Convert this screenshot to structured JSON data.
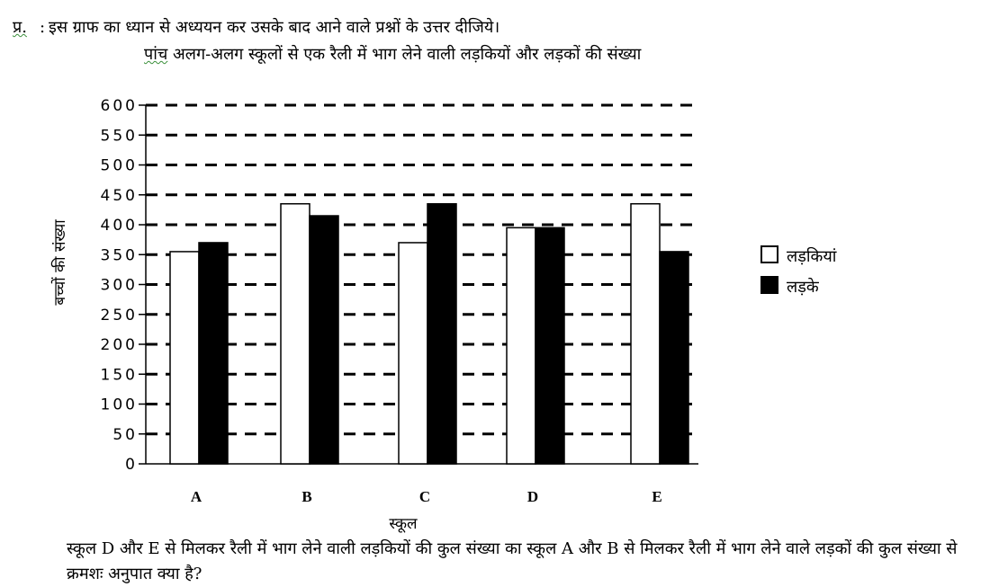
{
  "question_prefix": "प्र.",
  "question_sep": ":",
  "intro": "इस ग्राफ का ध्यान से अध्ययन कर उसके बाद आने वाले प्रश्नों के उत्तर दीजिये।",
  "question": "स्कूल D और E से मिलकर रैली में भाग लेने वाली लड़कियों की कुल संख्या का स्कूल A और B से मिलकर रैली में भाग लेने वाले लड़कों की कुल संख्या से क्रमशः अनुपात क्या है?",
  "chart_data": {
    "type": "bar",
    "title_first": "पांच",
    "title_rest": " अलग-अलग स्कूलों से एक रैली में भाग लेने वाली लड़कियों और लड़कों की संख्या",
    "categories": [
      "A",
      "B",
      "C",
      "D",
      "E"
    ],
    "series": [
      {
        "name": "लड़कियां",
        "values": [
          355,
          435,
          370,
          395,
          435
        ],
        "color": "#ffffff"
      },
      {
        "name": "लड़के",
        "values": [
          370,
          415,
          435,
          395,
          355
        ],
        "color": "#000000"
      }
    ],
    "xlabel": "स्कूल",
    "ylabel": "बच्चों की संख्या",
    "ylim": [
      0,
      600
    ],
    "yticks": [
      0,
      50,
      100,
      150,
      200,
      250,
      300,
      350,
      400,
      450,
      500,
      550,
      600
    ],
    "grid": true,
    "gridStyle": "dashed",
    "legend_position": "right"
  }
}
